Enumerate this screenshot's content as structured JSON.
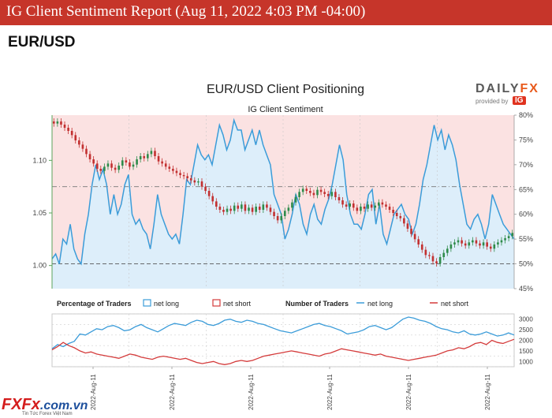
{
  "report": {
    "title": "IG Client Sentiment Report (Aug 11, 2022 4:03 PM -04:00)",
    "pair": "EUR/USD"
  },
  "brand": {
    "name_part1": "DAILY",
    "name_part2": "FX",
    "provided_by": "provided by",
    "provider": "IG"
  },
  "site": {
    "name": "FXFx",
    "tld": ".com.vn",
    "tagline": "Tin Tức Forex Việt Nam"
  },
  "colors": {
    "banner": "#c6352a",
    "net_long": "#3b9cd9",
    "net_short": "#d43b3b",
    "up_candle": "#2e8b4a",
    "down_candle": "#c23030",
    "bg_short_zone": "#fbe2e2",
    "bg_long_zone": "#ddeefa"
  },
  "chart_data": [
    {
      "type": "line",
      "title": "EUR/USD Client Positioning",
      "subtitle": "IG Client Sentiment",
      "y_left": {
        "ticks": [
          1.0,
          1.05,
          1.1
        ],
        "range": [
          0.978,
          1.143
        ]
      },
      "y_right": {
        "ticks": [
          "45%",
          "50%",
          "55%",
          "60%",
          "65%",
          "70%",
          "75%",
          "80%"
        ],
        "range": [
          45,
          80
        ]
      },
      "reference_lines": {
        "price": 1.075,
        "percent": 50
      },
      "series": [
        {
          "name": "net long",
          "unit": "%",
          "values": [
            51,
            52,
            50,
            55,
            54,
            58,
            53,
            51,
            50,
            56,
            60,
            66,
            70,
            67,
            69,
            66,
            60,
            64,
            60,
            62,
            66,
            68,
            60,
            58,
            59,
            57,
            56,
            53,
            58,
            64,
            60,
            58,
            56,
            55,
            56,
            54,
            60,
            67,
            66,
            70,
            74,
            72,
            71,
            72,
            70,
            74,
            78,
            76,
            73,
            75,
            79,
            77,
            77,
            73,
            75,
            77,
            74,
            77,
            74,
            72,
            70,
            64,
            62,
            60,
            55,
            57,
            60,
            64,
            62,
            58,
            56,
            60,
            62,
            59,
            58,
            61,
            63,
            66,
            70,
            74,
            71,
            64,
            60,
            58,
            58,
            57,
            60,
            64,
            65,
            58,
            62,
            56,
            54,
            57,
            60,
            61,
            62,
            60,
            59,
            56,
            58,
            62,
            67,
            70,
            74,
            78,
            75,
            77,
            73,
            76,
            74,
            71,
            66,
            62,
            58,
            57,
            59,
            60,
            58,
            55,
            58,
            64,
            62,
            60,
            58,
            57,
            56,
            55
          ]
        },
        {
          "name": "EUR/USD",
          "unit": "price",
          "values": [
            1.135,
            1.137,
            1.134,
            1.131,
            1.128,
            1.124,
            1.119,
            1.115,
            1.111,
            1.106,
            1.101,
            1.097,
            1.092,
            1.09,
            1.094,
            1.097,
            1.093,
            1.091,
            1.095,
            1.1,
            1.098,
            1.094,
            1.096,
            1.101,
            1.104,
            1.102,
            1.106,
            1.109,
            1.104,
            1.099,
            1.097,
            1.094,
            1.092,
            1.09,
            1.088,
            1.086,
            1.085,
            1.083,
            1.081,
            1.079,
            1.08,
            1.075,
            1.071,
            1.066,
            1.061,
            1.056,
            1.053,
            1.051,
            1.054,
            1.052,
            1.057,
            1.054,
            1.058,
            1.052,
            1.055,
            1.051,
            1.056,
            1.053,
            1.058,
            1.055,
            1.051,
            1.047,
            1.043,
            1.047,
            1.052,
            1.055,
            1.06,
            1.065,
            1.07,
            1.073,
            1.071,
            1.069,
            1.067,
            1.072,
            1.07,
            1.068,
            1.066,
            1.07,
            1.065,
            1.062,
            1.058,
            1.056,
            1.059,
            1.055,
            1.052,
            1.056,
            1.054,
            1.058,
            1.055,
            1.057,
            1.06,
            1.058,
            1.056,
            1.053,
            1.05,
            1.047,
            1.045,
            1.04,
            1.035,
            1.03,
            1.025,
            1.02,
            1.015,
            1.01,
            1.009,
            1.004,
            1.002,
            1.008,
            1.012,
            1.016,
            1.02,
            1.022,
            1.024,
            1.021,
            1.019,
            1.022,
            1.024,
            1.021,
            1.019,
            1.022,
            1.018,
            1.016,
            1.02,
            1.022,
            1.024,
            1.026,
            1.028,
            1.031
          ]
        }
      ]
    },
    {
      "type": "line",
      "legend_left": {
        "title": "Percentage of Traders",
        "items": [
          "net long",
          "net short"
        ]
      },
      "legend_right": {
        "title": "Number of Traders",
        "items": [
          "net long",
          "net short"
        ]
      },
      "y_right": {
        "ticks": [
          1000,
          1500,
          2000,
          2500,
          3000
        ],
        "range": [
          750,
          3250
        ]
      },
      "x_ticks": [
        "2022-Aug-11",
        "2022-Aug-11",
        "2022-Aug-11",
        "2022-Aug-11",
        "2022-Aug-11",
        "2022-Aug-11"
      ],
      "series": [
        {
          "name": "net long",
          "values": [
            1600,
            1800,
            1700,
            1850,
            1950,
            2300,
            2250,
            2400,
            2550,
            2500,
            2650,
            2700,
            2600,
            2450,
            2500,
            2650,
            2750,
            2600,
            2500,
            2400,
            2550,
            2700,
            2800,
            2750,
            2700,
            2850,
            2950,
            2900,
            2750,
            2700,
            2800,
            2950,
            3000,
            2900,
            2850,
            2950,
            2900,
            2800,
            2750,
            2650,
            2550,
            2450,
            2400,
            2350,
            2450,
            2550,
            2650,
            2750,
            2800,
            2700,
            2650,
            2550,
            2450,
            2300,
            2350,
            2400,
            2500,
            2650,
            2700,
            2600,
            2500,
            2600,
            2800,
            3000,
            3100,
            3050,
            2950,
            2900,
            2800,
            2650,
            2550,
            2500,
            2400,
            2350,
            2450,
            2300,
            2250,
            2300,
            2400,
            2300,
            2200,
            2250,
            2350,
            2250
          ]
        },
        {
          "name": "net short",
          "values": [
            1550,
            1700,
            1900,
            1750,
            1650,
            1500,
            1400,
            1450,
            1350,
            1300,
            1250,
            1200,
            1150,
            1250,
            1350,
            1300,
            1200,
            1150,
            1100,
            1200,
            1250,
            1200,
            1150,
            1100,
            1150,
            1050,
            950,
            900,
            950,
            1000,
            900,
            850,
            900,
            1000,
            1050,
            1000,
            1050,
            1150,
            1250,
            1300,
            1350,
            1400,
            1450,
            1500,
            1450,
            1400,
            1350,
            1300,
            1250,
            1350,
            1400,
            1500,
            1600,
            1550,
            1500,
            1450,
            1400,
            1350,
            1300,
            1350,
            1250,
            1200,
            1150,
            1100,
            1050,
            1100,
            1150,
            1200,
            1250,
            1300,
            1400,
            1500,
            1550,
            1650,
            1600,
            1700,
            1850,
            1900,
            1800,
            2000,
            1900,
            1850,
            1950,
            2050
          ]
        }
      ]
    }
  ]
}
